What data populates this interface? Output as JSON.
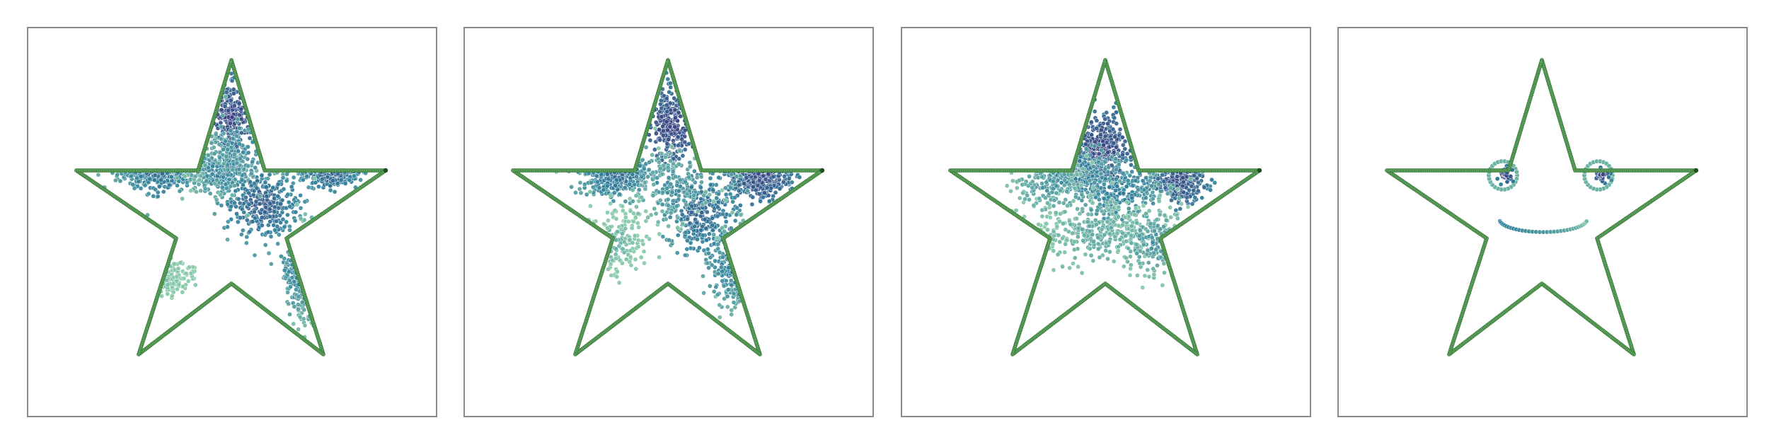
{
  "figure": {
    "panel_count": 4,
    "colors": {
      "frame": "#8a8a8a",
      "star_outline": "#5fa35f",
      "star_outline_dark": "#2f6f2f",
      "point_dark": "#3b2f7a",
      "point_mid": "#2f7f9a",
      "point_light": "#86c9a8",
      "background": "#ffffff"
    },
    "icons": [
      "star-shape",
      "smiley-face"
    ]
  },
  "panels": [
    {
      "id": "panel-1",
      "content": "star-outline-with-scattered-points",
      "clusters": [
        {
          "u": 0.5,
          "v": 0.19,
          "sx": 0.025,
          "sy": 0.06,
          "n": 220,
          "c": 0.1
        },
        {
          "u": 0.27,
          "v": 0.36,
          "sx": 0.07,
          "sy": 0.035,
          "n": 320,
          "c": 0.35
        },
        {
          "u": 0.47,
          "v": 0.38,
          "sx": 0.05,
          "sy": 0.035,
          "n": 220,
          "c": 0.45
        },
        {
          "u": 0.82,
          "v": 0.36,
          "sx": 0.05,
          "sy": 0.03,
          "n": 260,
          "c": 0.25
        },
        {
          "u": 0.6,
          "v": 0.49,
          "sx": 0.06,
          "sy": 0.06,
          "n": 330,
          "c": 0.25
        },
        {
          "u": 0.75,
          "v": 0.72,
          "sx": 0.035,
          "sy": 0.07,
          "n": 150,
          "c": 0.45
        },
        {
          "u": 0.27,
          "v": 0.73,
          "sx": 0.05,
          "sy": 0.03,
          "n": 130,
          "c": 0.85
        },
        {
          "u": 0.55,
          "v": 0.3,
          "sx": 0.1,
          "sy": 0.08,
          "n": 120,
          "c": 0.55
        }
      ]
    },
    {
      "id": "panel-2",
      "content": "star-outline-with-scattered-points",
      "clusters": [
        {
          "u": 0.51,
          "v": 0.22,
          "sx": 0.03,
          "sy": 0.07,
          "n": 260,
          "c": 0.1
        },
        {
          "u": 0.33,
          "v": 0.38,
          "sx": 0.06,
          "sy": 0.04,
          "n": 300,
          "c": 0.35
        },
        {
          "u": 0.8,
          "v": 0.39,
          "sx": 0.06,
          "sy": 0.04,
          "n": 300,
          "c": 0.15
        },
        {
          "u": 0.61,
          "v": 0.52,
          "sx": 0.06,
          "sy": 0.07,
          "n": 320,
          "c": 0.3
        },
        {
          "u": 0.33,
          "v": 0.62,
          "sx": 0.05,
          "sy": 0.06,
          "n": 150,
          "c": 0.8
        },
        {
          "u": 0.72,
          "v": 0.7,
          "sx": 0.04,
          "sy": 0.07,
          "n": 140,
          "c": 0.45
        },
        {
          "u": 0.52,
          "v": 0.43,
          "sx": 0.06,
          "sy": 0.06,
          "n": 150,
          "c": 0.55
        }
      ]
    },
    {
      "id": "panel-3",
      "content": "star-outline-with-scattered-points",
      "clusters": [
        {
          "u": 0.48,
          "v": 0.3,
          "sx": 0.06,
          "sy": 0.07,
          "n": 360,
          "c": 0.1
        },
        {
          "u": 0.4,
          "v": 0.38,
          "sx": 0.07,
          "sy": 0.04,
          "n": 240,
          "c": 0.4
        },
        {
          "u": 0.74,
          "v": 0.41,
          "sx": 0.05,
          "sy": 0.035,
          "n": 240,
          "c": 0.15
        },
        {
          "u": 0.55,
          "v": 0.45,
          "sx": 0.08,
          "sy": 0.05,
          "n": 260,
          "c": 0.45
        },
        {
          "u": 0.47,
          "v": 0.59,
          "sx": 0.12,
          "sy": 0.05,
          "n": 300,
          "c": 0.75
        },
        {
          "u": 0.66,
          "v": 0.62,
          "sx": 0.05,
          "sy": 0.06,
          "n": 160,
          "c": 0.6
        },
        {
          "u": 0.32,
          "v": 0.42,
          "sx": 0.06,
          "sy": 0.05,
          "n": 140,
          "c": 0.6
        }
      ]
    },
    {
      "id": "panel-4",
      "content": "star-outline-with-smiley-face"
    }
  ]
}
